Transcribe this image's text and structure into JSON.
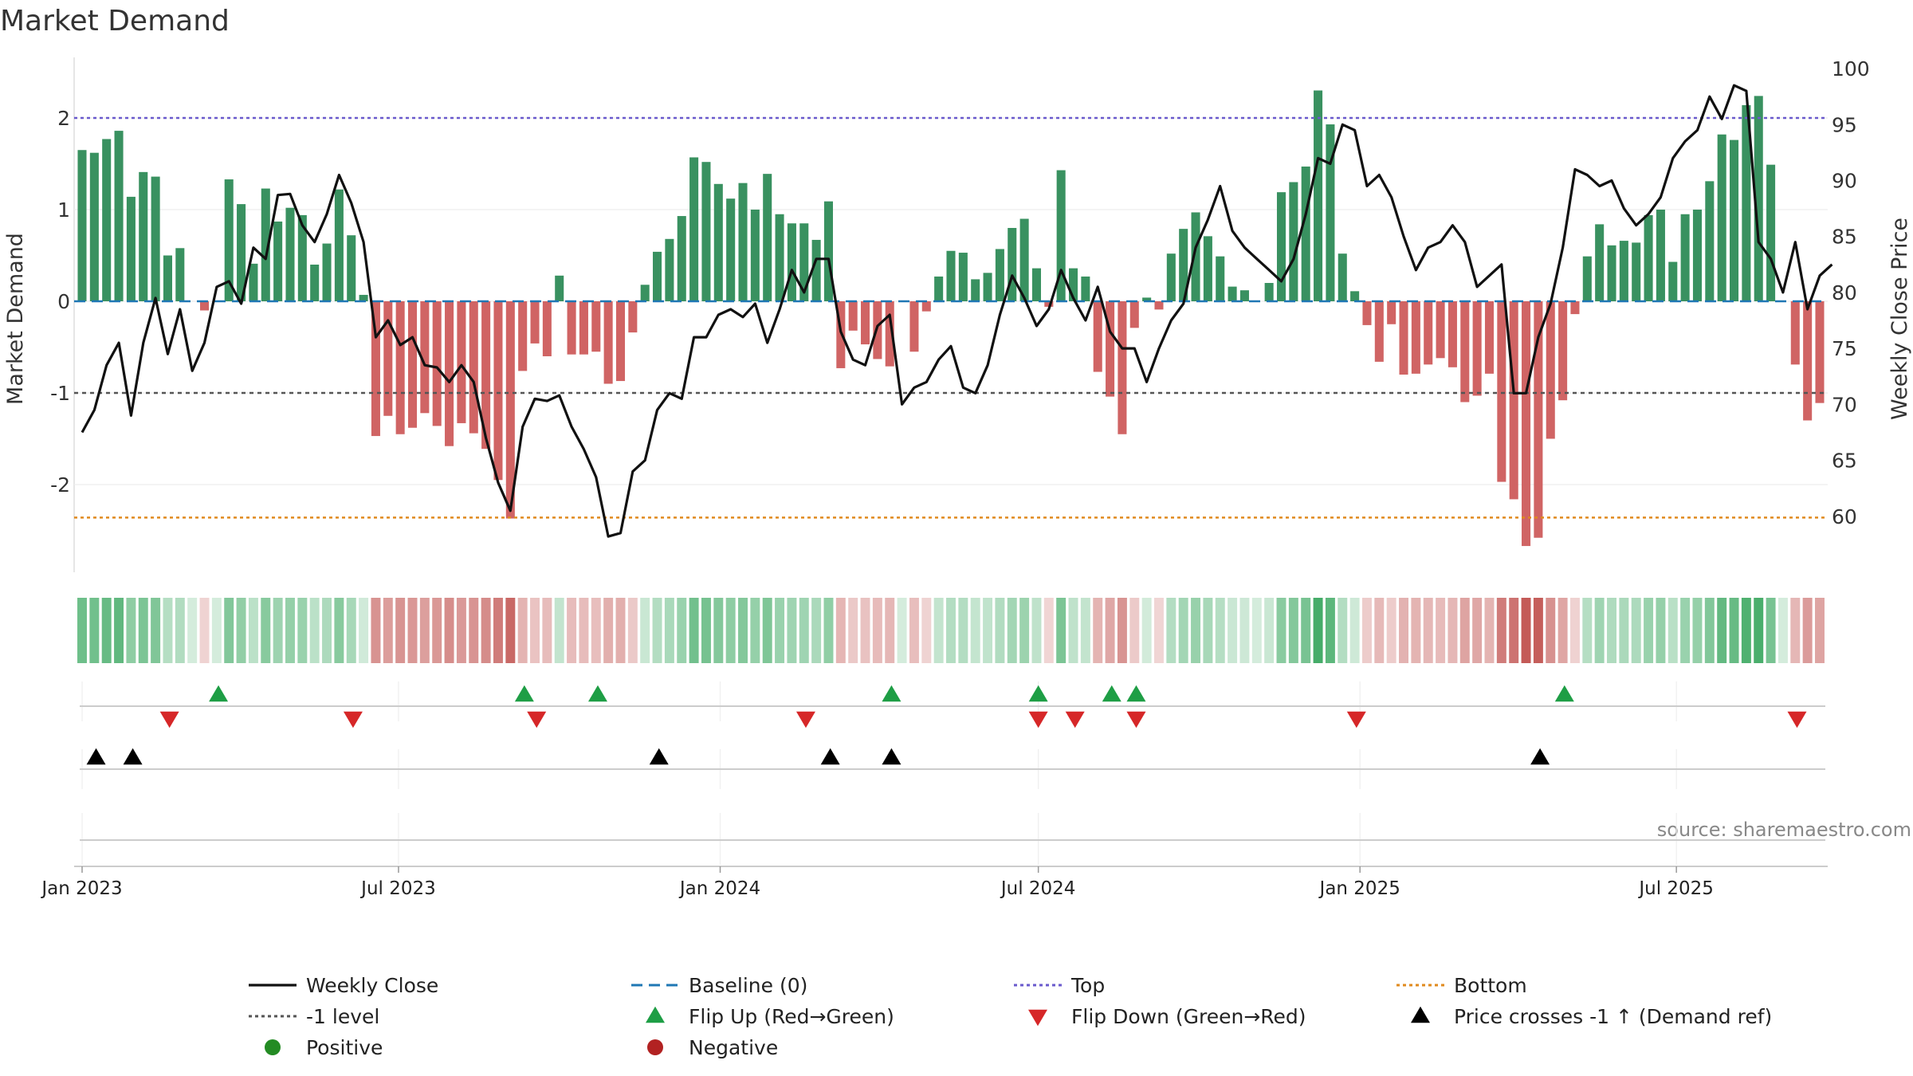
{
  "colors": {
    "pos": "#2e8b57",
    "neg": "#cd5c5c",
    "price": "#111111",
    "baseline": "#1f77b4",
    "top": "#6a5acd",
    "bottom": "#e08a1e",
    "m1": "#555555",
    "flip_up": "#1e9e45",
    "flip_down": "#d62728",
    "cross": "#000000",
    "grid": "#dddddd",
    "positive_dot": "#238b23",
    "negative_dot": "#b22222",
    "source": "#888888"
  },
  "chart_data": {
    "type": "bar+line",
    "title": "Market Demand",
    "ylabel_left": "Market Demand",
    "ylabel_right": "Weekly Close Price",
    "ylim_left": [
      -2.92,
      2.52
    ],
    "ylim_right": [
      55,
      101
    ],
    "left_ticks": [
      2,
      1,
      0,
      -1,
      -2
    ],
    "right_ticks": [
      100,
      95,
      90,
      85,
      80,
      75,
      70,
      65,
      60
    ],
    "x_ticks": [
      "Jan 2023",
      "Jul 2023",
      "Jan 2024",
      "Jul 2024",
      "Jan 2025",
      "Jul 2025"
    ],
    "start_week": "2023-01-01",
    "reference_lines": {
      "top": 2.0,
      "bottom": -2.36,
      "minus_one": -1.0,
      "baseline": 0.0
    },
    "demand": [
      1.65,
      1.62,
      1.77,
      1.86,
      1.14,
      1.41,
      1.36,
      0.5,
      0.58,
      0,
      -0.1,
      0,
      1.33,
      1.06,
      0.41,
      1.23,
      0.87,
      1.02,
      0.94,
      0.4,
      0.63,
      1.22,
      0.72,
      0.07,
      -1.47,
      -1.25,
      -1.45,
      -1.38,
      -1.22,
      -1.36,
      -1.58,
      -1.33,
      -1.44,
      -1.61,
      -1.95,
      -2.37,
      -0.76,
      -0.46,
      -0.6,
      0.28,
      -0.58,
      -0.58,
      -0.55,
      -0.9,
      -0.87,
      -0.34,
      0.18,
      0.54,
      0.68,
      0.93,
      1.57,
      1.52,
      1.28,
      1.12,
      1.29,
      1.0,
      1.39,
      0.95,
      0.85,
      0.85,
      0.67,
      1.09,
      -0.73,
      -0.32,
      -0.47,
      -0.63,
      -0.71,
      0,
      -0.55,
      -0.11,
      0.27,
      0.55,
      0.53,
      0.24,
      0.31,
      0.57,
      0.8,
      0.9,
      0.36,
      -0.06,
      1.43,
      0.36,
      0.27,
      -0.77,
      -1.04,
      -1.45,
      -0.29,
      0.04,
      -0.09,
      0.52,
      0.79,
      0.97,
      0.71,
      0.49,
      0.16,
      0.12,
      0,
      0.2,
      1.19,
      1.3,
      1.47,
      2.3,
      1.93,
      0.52,
      0.11,
      -0.26,
      -0.66,
      -0.25,
      -0.8,
      -0.79,
      -0.69,
      -0.62,
      -0.72,
      -1.1,
      -1.03,
      -0.79,
      -1.97,
      -2.16,
      -2.67,
      -2.58,
      -1.5,
      -1.08,
      -0.14,
      0.49,
      0.84,
      0.61,
      0.66,
      0.64,
      0.94,
      1.0,
      0.43,
      0.95,
      1.0,
      1.31,
      1.82,
      1.76,
      2.14,
      2.24,
      1.49,
      0,
      -0.69,
      -1.3,
      -1.11
    ],
    "weekly_close": [
      67.5,
      69.5,
      73.5,
      75.5,
      69.0,
      75.5,
      79.5,
      74.5,
      78.5,
      73.0,
      75.5,
      80.5,
      81.0,
      79.0,
      84.0,
      83.0,
      88.7,
      88.8,
      86.0,
      84.5,
      87.0,
      90.5,
      88.0,
      84.5,
      76.0,
      77.5,
      75.3,
      76.0,
      73.5,
      73.3,
      72.0,
      73.5,
      72.0,
      67.0,
      63.0,
      60.5,
      68.0,
      70.5,
      70.3,
      70.8,
      68.0,
      66.0,
      63.5,
      58.2,
      58.5,
      64.0,
      65.0,
      69.5,
      71.0,
      70.5,
      76.0,
      76.0,
      78.0,
      78.5,
      77.8,
      79.0,
      75.5,
      78.5,
      82.0,
      80.0,
      83.0,
      83.0,
      76.5,
      74.0,
      73.5,
      77.0,
      78.0,
      70.0,
      71.5,
      72.0,
      74.0,
      75.2,
      71.5,
      71.0,
      73.5,
      78.0,
      81.5,
      79.5,
      77.0,
      78.5,
      82.0,
      79.5,
      77.5,
      80.5,
      76.5,
      75.0,
      75.0,
      72.0,
      75.0,
      77.5,
      79.0,
      84.0,
      86.5,
      89.5,
      85.5,
      84.0,
      83.0,
      82.0,
      81.0,
      83.0,
      87.0,
      92.0,
      91.5,
      95.0,
      94.5,
      89.5,
      90.5,
      88.5,
      85.0,
      82.0,
      84.0,
      84.5,
      86.0,
      84.5,
      80.5,
      81.5,
      82.5,
      71.0,
      71.0,
      76.0,
      79.0,
      84.0,
      91.0,
      90.5,
      89.5,
      90.0,
      87.5,
      86.0,
      87.0,
      88.5,
      92.0,
      93.5,
      94.5,
      97.5,
      95.5,
      98.5,
      98.0,
      84.5,
      83.0,
      80.0,
      84.5,
      78.5,
      81.5,
      82.5
    ],
    "flip_up_x": [
      "2023-03-20",
      "2023-09-11",
      "2023-10-23",
      "2024-04-08",
      "2024-07-01",
      "2024-08-12",
      "2024-08-26",
      "2025-04-28"
    ],
    "flip_down_x": [
      "2023-02-20",
      "2023-06-05",
      "2023-09-18",
      "2024-02-19",
      "2024-07-01",
      "2024-07-22",
      "2024-08-26",
      "2024-12-30",
      "2025-09-08"
    ],
    "price_cross_x": [
      "2023-01-09",
      "2023-01-30",
      "2023-11-27",
      "2024-03-04",
      "2024-04-08",
      "2025-04-14"
    ],
    "source": "source: sharemaestro.com",
    "legend": [
      {
        "label": "Weekly Close",
        "symbol": "solid",
        "color_key": "price"
      },
      {
        "label": "Baseline (0)",
        "symbol": "dashed",
        "color_key": "baseline"
      },
      {
        "label": "Top",
        "symbol": "dotted",
        "color_key": "top"
      },
      {
        "label": "Bottom",
        "symbol": "dotted",
        "color_key": "bottom"
      },
      {
        "label": "-1 level",
        "symbol": "dotted",
        "color_key": "m1"
      },
      {
        "label": "Flip Up (Red→Green)",
        "symbol": "tri-up",
        "color_key": "flip_up"
      },
      {
        "label": "Flip Down (Green→Red)",
        "symbol": "tri-down",
        "color_key": "flip_down"
      },
      {
        "label": "Price crosses -1 ↑ (Demand ref)",
        "symbol": "tri-up",
        "color_key": "cross"
      },
      {
        "label": "Positive",
        "symbol": "dot",
        "color_key": "positive_dot"
      },
      {
        "label": "Negative",
        "symbol": "dot",
        "color_key": "negative_dot"
      }
    ]
  }
}
